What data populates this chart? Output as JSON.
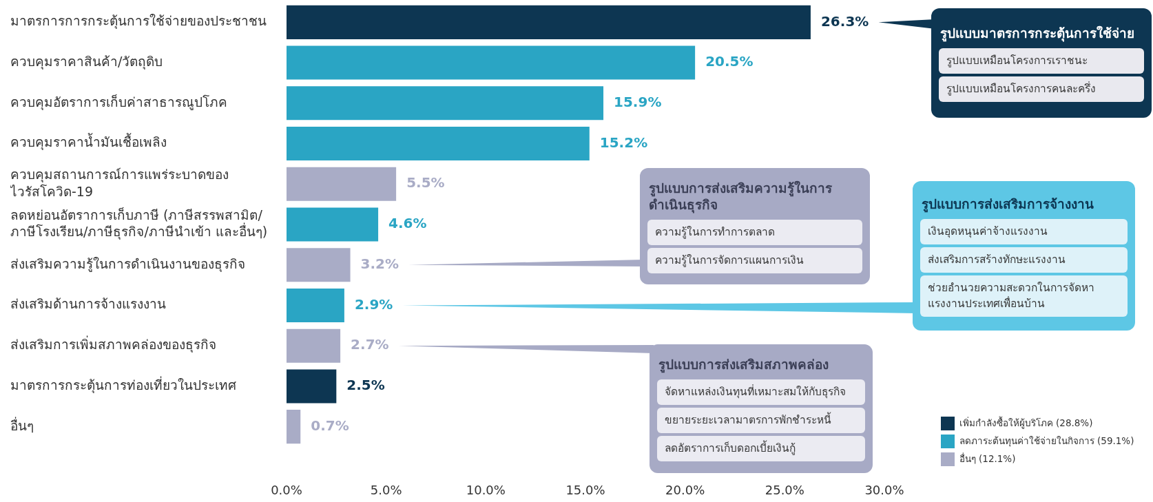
{
  "chart_data": {
    "type": "bar",
    "orientation": "horizontal",
    "stacked": true,
    "categories": [
      "มาตรการการกระตุ้นการใช้จ่ายของประชาชน",
      "ควบคุมราคาสินค้า/วัตถุดิบ",
      "ควบคุมอัตราการเก็บค่าสาธารณูปโภค",
      "ควบคุมราคาน้ำมันเชื้อเพลิง",
      "ควบคุมสถานการณ์การแพร่ระบาดของ\nไวรัสโควิด-19",
      "ลดหย่อนอัตราการเก็บภาษี (ภาษีสรรพสามิต/\nภาษีโรงเรียน/ภาษีธุรกิจ/ภาษีนำเข้า และอื่นๆ)",
      "ส่งเสริมความรู้ในการดำเนินงานของธุรกิจ",
      "ส่งเสริมด้านการจ้างแรงงาน",
      "ส่งเสริมการเพิ่มสภาพคล่องของธุรกิจ",
      "มาตรการกระตุ้นการท่องเที่ยวในประเทศ",
      "อื่นๆ"
    ],
    "series": [
      {
        "name": "เพิ่มกำลังซื้อให้ผู้บริโภค (28.8%)",
        "color": "#0d3652",
        "values": [
          26.3,
          null,
          null,
          null,
          null,
          null,
          null,
          null,
          null,
          2.5,
          null
        ],
        "value_labels": [
          "26.3%",
          null,
          null,
          null,
          null,
          null,
          null,
          null,
          null,
          "2.5%",
          null
        ]
      },
      {
        "name": "ลดภาระต้นทุนค่าใช้จ่ายในกิจการ (59.1%)",
        "color": "#2aa5c4",
        "values": [
          null,
          20.5,
          15.9,
          15.2,
          null,
          4.6,
          null,
          2.9,
          null,
          null,
          null
        ],
        "value_labels": [
          null,
          "20.5%",
          "15.9%",
          "15.2%",
          null,
          "4.6%",
          null,
          "2.9%",
          null,
          null,
          null
        ]
      },
      {
        "name": "อื่นๆ (12.1%)",
        "color": "#a9acc6",
        "values": [
          null,
          null,
          null,
          null,
          5.5,
          null,
          3.2,
          null,
          2.7,
          null,
          0.7
        ],
        "value_labels": [
          null,
          null,
          null,
          null,
          "5.5%",
          null,
          "3.2%",
          null,
          "2.7%",
          null,
          "0.7%"
        ]
      }
    ],
    "xlim": [
      0,
      30
    ],
    "xticks": [
      {
        "value": 0,
        "label": "0.0%"
      },
      {
        "value": 5,
        "label": "5.0%"
      },
      {
        "value": 10,
        "label": "10.0%"
      },
      {
        "value": 15,
        "label": "15.0%"
      },
      {
        "value": 20,
        "label": "20.0%"
      },
      {
        "value": 25,
        "label": "25.0%"
      },
      {
        "value": 30,
        "label": "30.0%"
      }
    ],
    "grid": false,
    "legend": "bottom right",
    "annotations": [
      "รูปแบบมาตรการกระตุ้นการใช้จ่าย",
      "รูปแบบเหมือนโครงการเราชนะ",
      "รูปแบบเหมือนโครงการคนละครึ่ง",
      "รูปแบบการส่งเสริมความรู้ในการดำเนินธุรกิจ",
      "ความรู้ในการทำการตลาด",
      "ความรู้ในการจัดการแผนการเงิน",
      "รูปแบบการส่งเสริมการจ้างงาน",
      "เงินอุดหนุนค่าจ้างแรงงาน",
      "ส่งเสริมการสร้างทักษะแรงงาน",
      "ช่วยอำนวยความสะดวกในการจัดหาแรงงานประเทศเพื่อนบ้าน",
      "รูปแบบการส่งเสริมสภาพคล่อง",
      "จัดหาแหล่งเงินทุนที่เหมาะสมให้กับธุรกิจ",
      "ขยายระยะเวลามาตรการพักชำระหนี้",
      "ลดอัตราการเก็บดอกเบี้ยเงินกู้"
    ]
  }
}
